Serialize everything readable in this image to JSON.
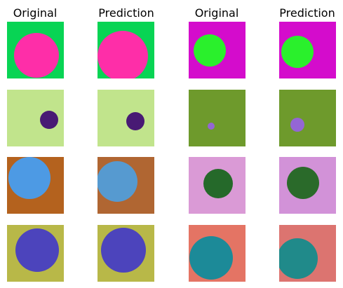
{
  "column_titles": [
    "Original",
    "Prediction",
    "Original",
    "Prediction"
  ]
}
